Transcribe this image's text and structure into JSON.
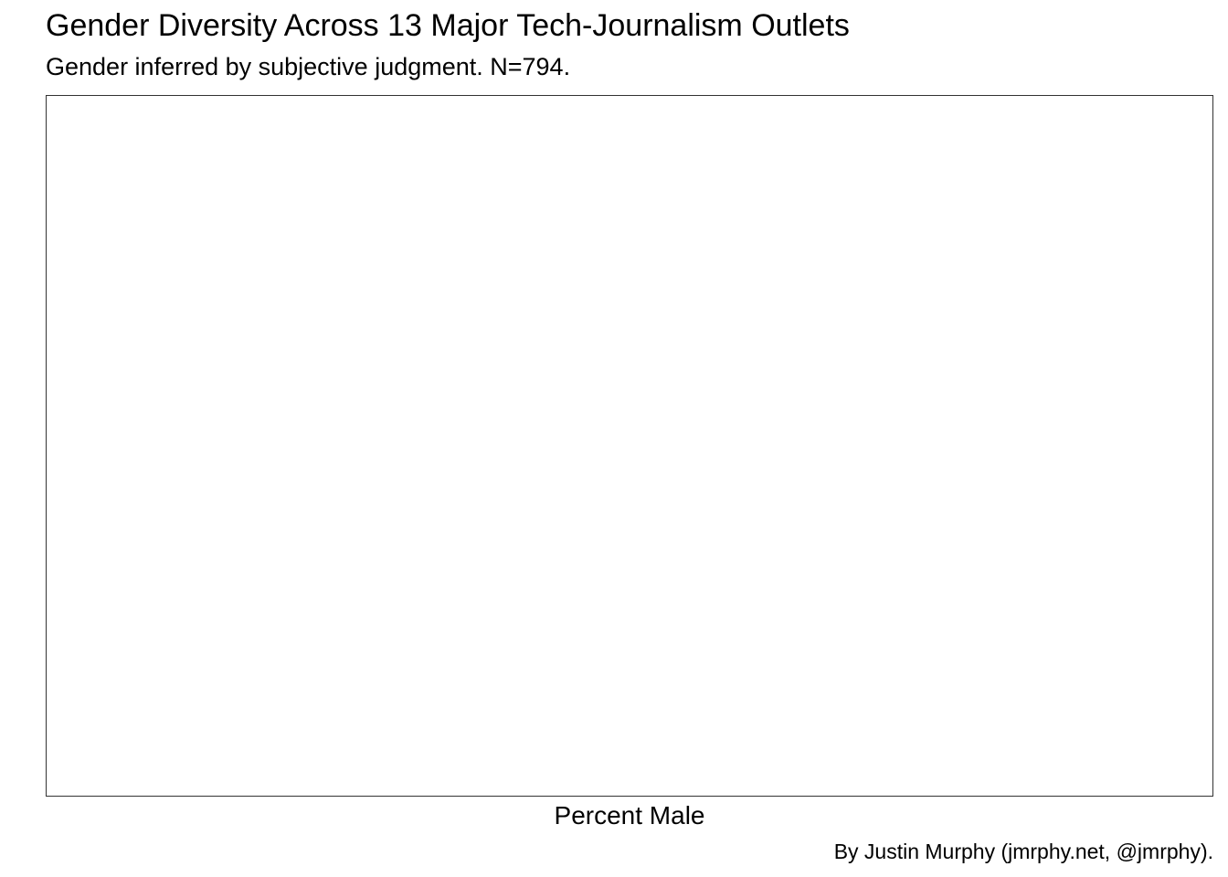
{
  "chart_data": {
    "type": "bar",
    "title": "Gender Diversity Across 13 Major Tech-Journalism Outlets",
    "subtitle": "Gender inferred by subjective judgment. N=794.",
    "xlabel": "Percent Male",
    "ylabel": "",
    "caption": "By Justin Murphy (jmrphy.net, @jmrphy).",
    "categories": [],
    "values": [],
    "grid": false,
    "legend": "none"
  }
}
